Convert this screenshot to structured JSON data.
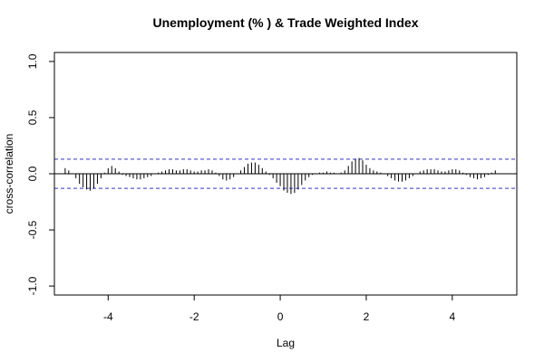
{
  "chart_data": {
    "type": "bar",
    "title": "Unemployment (% ) & Trade Weighted Index",
    "xlabel": "Lag",
    "ylabel": "cross-correlation",
    "xlim": [
      -5.25,
      5.5
    ],
    "ylim": [
      -1.08,
      1.08
    ],
    "x_ticks": [
      -4,
      -2,
      0,
      2,
      4
    ],
    "x_tick_labels": [
      "-4",
      "-2",
      "0",
      "2",
      "4"
    ],
    "y_ticks": [
      -1.0,
      -0.5,
      0.0,
      0.5,
      1.0
    ],
    "y_tick_labels": [
      "-1.0",
      "-0.5",
      "0.0",
      "0.5",
      "1.0"
    ],
    "confidence_limit": 0.13,
    "confidence_color": "#5b5bd6",
    "bar_color": "#000000",
    "grid": false,
    "legend": "none",
    "lags": [
      -5.0,
      -4.9167,
      -4.8333,
      -4.75,
      -4.6667,
      -4.5833,
      -4.5,
      -4.4167,
      -4.3333,
      -4.25,
      -4.1667,
      -4.0833,
      -4.0,
      -3.9167,
      -3.8333,
      -3.75,
      -3.6667,
      -3.5833,
      -3.5,
      -3.4167,
      -3.3333,
      -3.25,
      -3.1667,
      -3.0833,
      -3.0,
      -2.9167,
      -2.8333,
      -2.75,
      -2.6667,
      -2.5833,
      -2.5,
      -2.4167,
      -2.3333,
      -2.25,
      -2.1667,
      -2.0833,
      -2.0,
      -1.9167,
      -1.8333,
      -1.75,
      -1.6667,
      -1.5833,
      -1.5,
      -1.4167,
      -1.3333,
      -1.25,
      -1.1667,
      -1.0833,
      -1.0,
      -0.9167,
      -0.8333,
      -0.75,
      -0.6667,
      -0.5833,
      -0.5,
      -0.4167,
      -0.3333,
      -0.25,
      -0.1667,
      -0.0833,
      0.0,
      0.0833,
      0.1667,
      0.25,
      0.3333,
      0.4167,
      0.5,
      0.5833,
      0.6667,
      0.75,
      0.8333,
      0.9167,
      1.0,
      1.0833,
      1.1667,
      1.25,
      1.3333,
      1.4167,
      1.5,
      1.5833,
      1.6667,
      1.75,
      1.8333,
      1.9167,
      2.0,
      2.0833,
      2.1667,
      2.25,
      2.3333,
      2.4167,
      2.5,
      2.5833,
      2.6667,
      2.75,
      2.8333,
      2.9167,
      3.0,
      3.0833,
      3.1667,
      3.25,
      3.3333,
      3.4167,
      3.5,
      3.5833,
      3.6667,
      3.75,
      3.8333,
      3.9167,
      4.0,
      4.0833,
      4.1667,
      4.25,
      4.3333,
      4.4167,
      4.5,
      4.5833,
      4.6667,
      4.75,
      4.8333,
      4.9167,
      5.0
    ],
    "values": [
      0.05,
      0.03,
      0.0,
      -0.04,
      -0.09,
      -0.12,
      -0.14,
      -0.15,
      -0.13,
      -0.09,
      -0.04,
      0.01,
      0.05,
      0.07,
      0.05,
      0.02,
      -0.01,
      -0.02,
      -0.03,
      -0.04,
      -0.05,
      -0.05,
      -0.04,
      -0.03,
      -0.02,
      0.0,
      0.01,
      0.02,
      0.03,
      0.04,
      0.04,
      0.03,
      0.03,
      0.04,
      0.04,
      0.03,
      0.02,
      0.02,
      0.03,
      0.03,
      0.04,
      0.03,
      0.01,
      -0.02,
      -0.05,
      -0.06,
      -0.05,
      -0.03,
      0.0,
      0.03,
      0.06,
      0.09,
      0.1,
      0.1,
      0.08,
      0.05,
      0.02,
      -0.01,
      -0.04,
      -0.08,
      -0.11,
      -0.15,
      -0.17,
      -0.18,
      -0.17,
      -0.14,
      -0.1,
      -0.06,
      -0.03,
      -0.01,
      0.0,
      0.01,
      0.01,
      0.02,
      0.01,
      0.01,
      0.0,
      0.01,
      0.03,
      0.07,
      0.11,
      0.13,
      0.14,
      0.12,
      0.08,
      0.05,
      0.03,
      0.02,
      0.01,
      0.0,
      -0.02,
      -0.04,
      -0.06,
      -0.07,
      -0.07,
      -0.06,
      -0.04,
      -0.02,
      0.0,
      0.02,
      0.03,
      0.04,
      0.04,
      0.04,
      0.03,
      0.02,
      0.02,
      0.03,
      0.04,
      0.04,
      0.03,
      0.01,
      -0.01,
      -0.03,
      -0.04,
      -0.05,
      -0.04,
      -0.03,
      -0.01,
      0.01,
      0.03
    ]
  }
}
